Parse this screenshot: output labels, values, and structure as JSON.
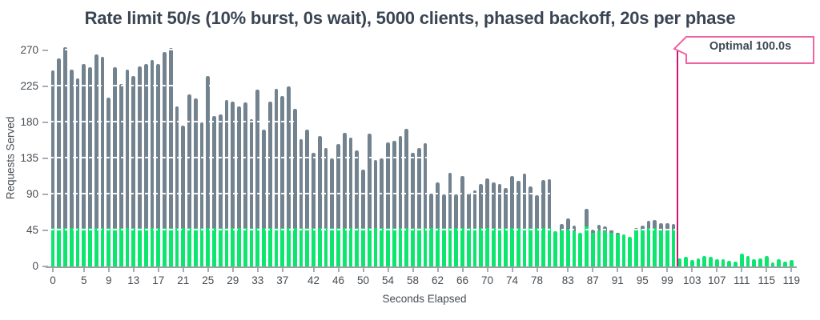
{
  "colors": {
    "served_green": "#0ce66e",
    "excess_gray": "#72838f",
    "optimal_line_magenta": "#cc1472",
    "annotation_border_pink": "#ef63a2",
    "title_text": "#3a4554",
    "axis_text": "#474d53",
    "axis_line": "#9aa2a8"
  },
  "annotation": {
    "label": "Optimal 100.0s",
    "line_x_seconds": 100.5
  },
  "chart_data": {
    "type": "bar",
    "stacked": true,
    "title": "Rate limit 50/s (10% burst, 0s wait), 5000 clients, phased backoff, 20s per phase",
    "xlabel": "Seconds Elapsed",
    "ylabel": "Requests Served",
    "x_range": [
      0,
      119
    ],
    "ylim": [
      0,
      278
    ],
    "yticks": [
      0,
      45,
      90,
      135,
      180,
      225,
      270
    ],
    "xticks": [
      0,
      5,
      9,
      13,
      17,
      21,
      25,
      29,
      33,
      37,
      42,
      46,
      50,
      54,
      58,
      62,
      66,
      70,
      74,
      78,
      83,
      87,
      91,
      95,
      99,
      103,
      107,
      111,
      115,
      119
    ],
    "grid": "white dashed horizontal lines drawn over bars",
    "legend_position": "none",
    "annotation_text": "Optimal 100.0s",
    "seconds": [
      0,
      1,
      2,
      3,
      4,
      5,
      6,
      7,
      8,
      9,
      10,
      11,
      12,
      13,
      14,
      15,
      16,
      17,
      18,
      19,
      20,
      21,
      22,
      23,
      24,
      25,
      26,
      27,
      28,
      29,
      30,
      31,
      32,
      33,
      34,
      35,
      36,
      37,
      38,
      39,
      40,
      41,
      42,
      43,
      44,
      45,
      46,
      47,
      48,
      49,
      50,
      51,
      52,
      53,
      54,
      55,
      56,
      57,
      58,
      59,
      60,
      61,
      62,
      63,
      64,
      65,
      66,
      67,
      68,
      69,
      70,
      71,
      72,
      73,
      74,
      75,
      76,
      77,
      78,
      79,
      80,
      81,
      82,
      83,
      84,
      85,
      86,
      87,
      88,
      89,
      90,
      91,
      92,
      93,
      94,
      95,
      96,
      97,
      98,
      99,
      100,
      101,
      102,
      103,
      104,
      105,
      106,
      107,
      108,
      109,
      110,
      111,
      112,
      113,
      114,
      115,
      116,
      117,
      118,
      119
    ],
    "series": [
      {
        "name": "served",
        "color": "#0ce66e",
        "values": [
          48,
          48,
          48,
          48,
          48,
          48,
          48,
          48,
          48,
          48,
          48,
          48,
          48,
          48,
          48,
          48,
          48,
          48,
          48,
          48,
          48,
          48,
          48,
          48,
          48,
          48,
          48,
          48,
          48,
          48,
          48,
          48,
          48,
          48,
          48,
          48,
          48,
          48,
          48,
          48,
          48,
          48,
          48,
          48,
          48,
          48,
          48,
          48,
          48,
          48,
          48,
          48,
          48,
          48,
          48,
          48,
          48,
          48,
          48,
          48,
          48,
          48,
          48,
          48,
          48,
          48,
          48,
          48,
          48,
          48,
          48,
          48,
          48,
          48,
          48,
          48,
          48,
          48,
          48,
          48,
          48,
          44,
          45,
          46,
          44,
          42,
          50,
          42,
          45,
          44,
          42,
          40,
          40,
          37,
          46,
          46,
          48,
          48,
          45,
          45,
          46,
          10,
          12,
          8,
          10,
          13,
          12,
          9,
          9,
          7,
          6,
          16,
          13,
          9,
          10,
          13,
          5,
          9,
          6,
          8
        ]
      },
      {
        "name": "total_requests",
        "color": "#72838f",
        "values": [
          245,
          260,
          274,
          246,
          235,
          253,
          249,
          265,
          262,
          211,
          249,
          228,
          246,
          238,
          250,
          253,
          258,
          253,
          268,
          273,
          200,
          176,
          215,
          210,
          180,
          238,
          188,
          190,
          208,
          206,
          200,
          205,
          184,
          221,
          171,
          206,
          222,
          213,
          225,
          197,
          159,
          171,
          142,
          163,
          148,
          135,
          153,
          167,
          161,
          145,
          121,
          166,
          133,
          135,
          155,
          157,
          163,
          172,
          142,
          148,
          154,
          91,
          105,
          90,
          117,
          90,
          113,
          92,
          95,
          103,
          110,
          105,
          103,
          98,
          113,
          107,
          116,
          100,
          89,
          108,
          109,
          44,
          53,
          60,
          51,
          42,
          72,
          46,
          52,
          50,
          46,
          42,
          40,
          37,
          48,
          51,
          57,
          58,
          54,
          54,
          53,
          10,
          12,
          8,
          10,
          13,
          12,
          9,
          9,
          7,
          6,
          16,
          13,
          9,
          10,
          13,
          5,
          9,
          6,
          8
        ]
      }
    ]
  }
}
